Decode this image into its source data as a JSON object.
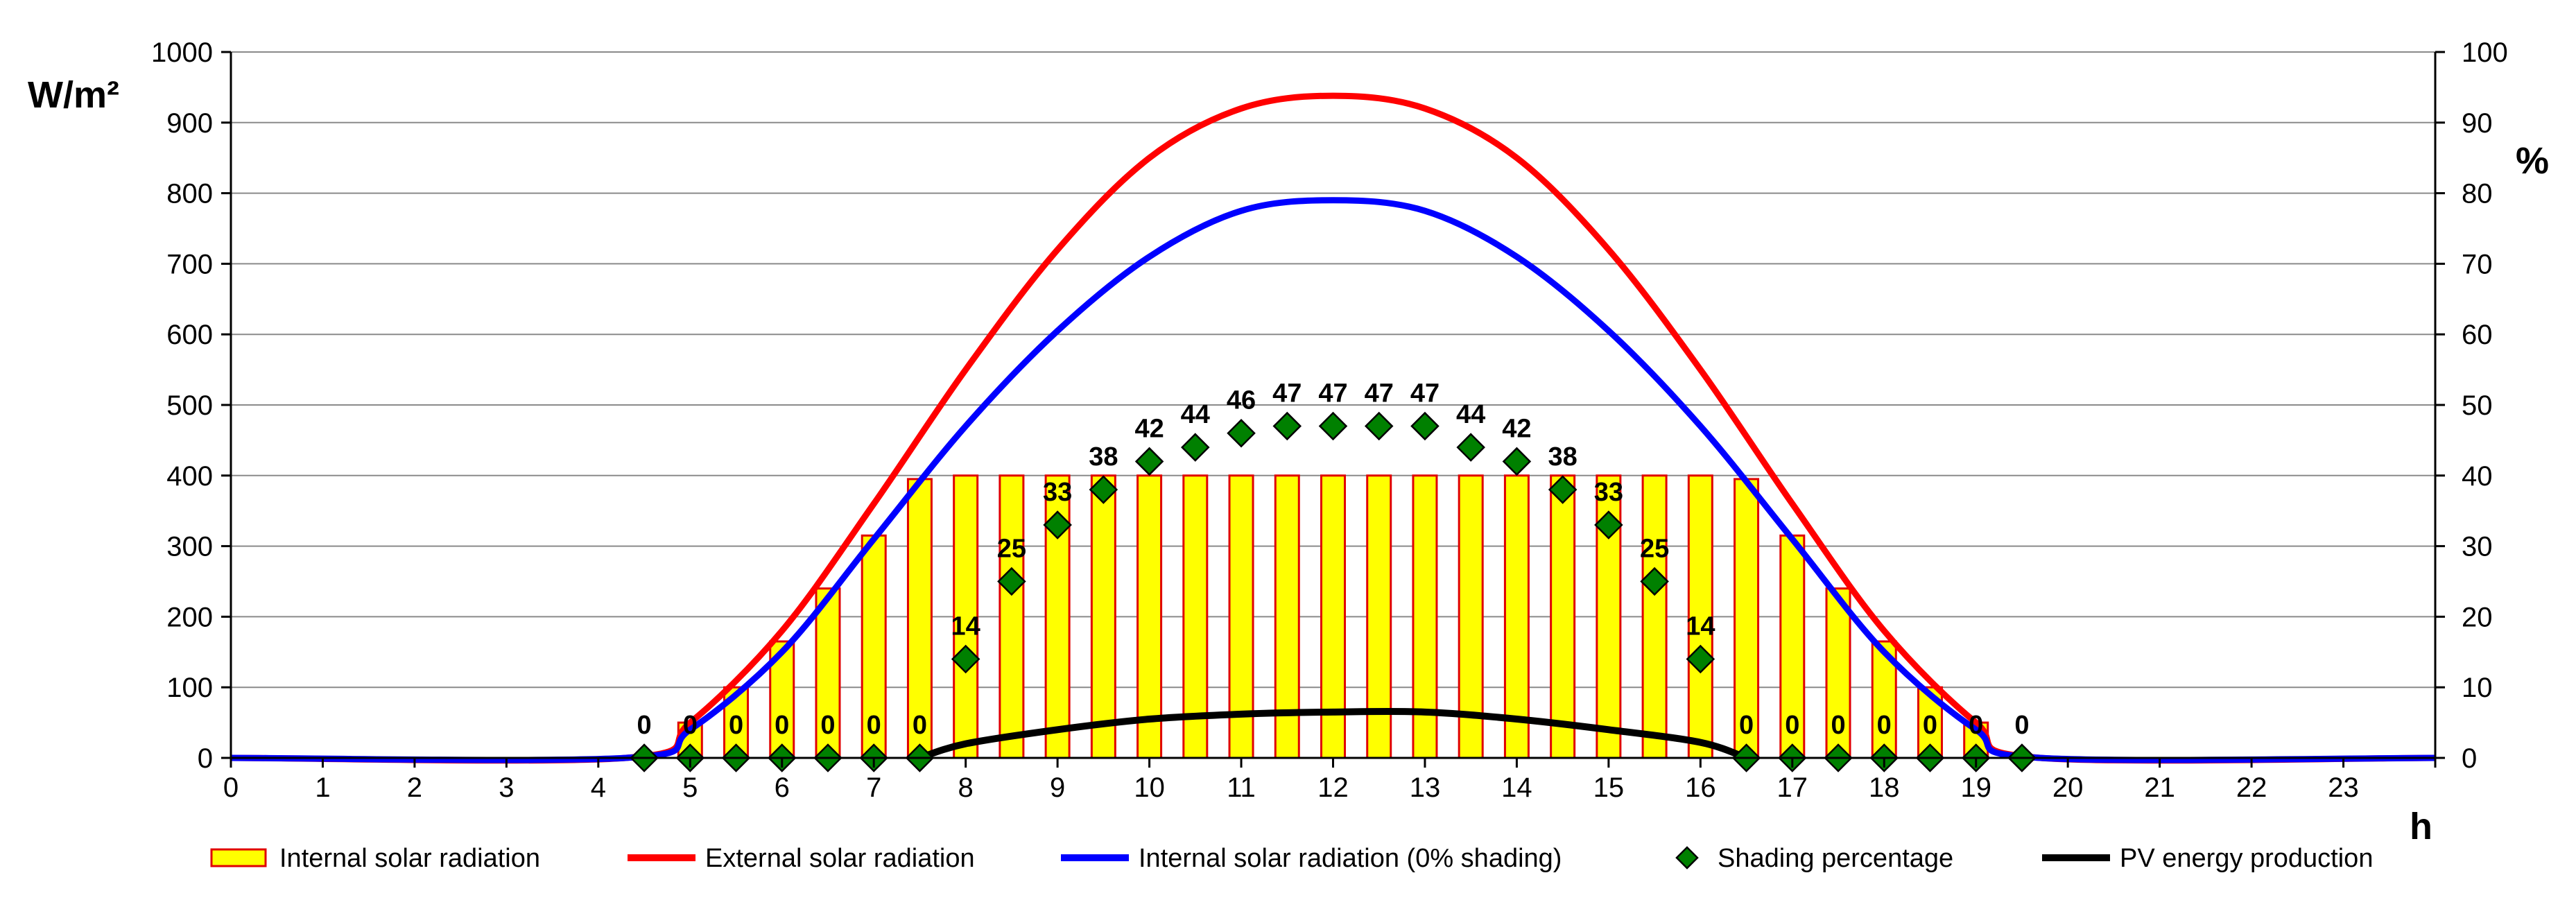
{
  "chart_data": {
    "type": "bar",
    "title": "",
    "y_left_label": "W/m²",
    "y_right_label": "%",
    "x_label": "h",
    "x_ticks": [
      0,
      1,
      2,
      3,
      4,
      5,
      6,
      7,
      8,
      9,
      10,
      11,
      12,
      13,
      14,
      15,
      16,
      17,
      18,
      19,
      20,
      21,
      22,
      23
    ],
    "x_range": [
      0,
      24
    ],
    "y_left_ticks": [
      0,
      100,
      200,
      300,
      400,
      500,
      600,
      700,
      800,
      900,
      1000
    ],
    "y_left_range": [
      0,
      1000
    ],
    "y_right_ticks": [
      0,
      10,
      20,
      30,
      40,
      50,
      60,
      70,
      80,
      90,
      100
    ],
    "y_right_range": [
      0,
      100
    ],
    "grid": "horizontal",
    "legend_position": "bottom",
    "series": [
      {
        "name": "Internal solar radiation",
        "type": "bar",
        "axis": "left",
        "color": "#ffff00",
        "edge_color": "#e00000",
        "x": [
          4.5,
          5,
          5.5,
          6,
          6.5,
          7,
          7.5,
          8,
          8.5,
          9,
          9.5,
          10,
          10.5,
          11,
          11.5,
          12,
          12.5,
          13,
          13.5,
          14,
          14.5,
          15,
          15.5,
          16,
          16.5,
          17,
          17.5,
          18,
          18.5,
          19,
          19.5
        ],
        "values": [
          0,
          50,
          100,
          165,
          240,
          315,
          395,
          400,
          400,
          400,
          400,
          400,
          400,
          400,
          400,
          400,
          400,
          400,
          400,
          400,
          400,
          400,
          400,
          400,
          395,
          315,
          240,
          165,
          100,
          50,
          0
        ]
      },
      {
        "name": "External solar radiation",
        "type": "line",
        "axis": "left",
        "color": "#ff0000",
        "x": [
          0,
          4.3,
          5,
          6,
          7,
          8,
          9,
          10,
          11,
          12,
          13,
          14,
          15,
          16,
          17,
          18,
          19,
          19.7,
          24
        ],
        "values": [
          0,
          0,
          50,
          180,
          360,
          550,
          720,
          850,
          920,
          938,
          920,
          850,
          720,
          550,
          360,
          180,
          50,
          0,
          0
        ]
      },
      {
        "name": "Internal solar radiation (0% shading)",
        "type": "line",
        "axis": "left",
        "color": "#0000ff",
        "x": [
          0,
          4.3,
          5,
          6,
          7,
          8,
          9,
          10,
          11,
          12,
          13,
          14,
          15,
          16,
          17,
          18,
          19,
          19.7,
          24
        ],
        "values": [
          0,
          0,
          40,
          150,
          310,
          470,
          605,
          710,
          775,
          790,
          775,
          710,
          605,
          470,
          310,
          150,
          40,
          0,
          0
        ]
      },
      {
        "name": "Shading percentage",
        "type": "scatter",
        "axis": "right",
        "color": "#008000",
        "x": [
          4.5,
          5,
          5.5,
          6,
          6.5,
          7,
          7.5,
          8,
          8.5,
          9,
          9.5,
          10,
          10.5,
          11,
          11.5,
          12,
          12.5,
          13,
          13.5,
          14,
          14.5,
          15,
          15.5,
          16,
          16.5,
          17,
          17.5,
          18,
          18.5,
          19,
          19.5
        ],
        "values": [
          0,
          0,
          0,
          0,
          0,
          0,
          0,
          14,
          25,
          33,
          38,
          42,
          44,
          46,
          47,
          47,
          47,
          47,
          44,
          42,
          38,
          33,
          25,
          14,
          0,
          0,
          0,
          0,
          0,
          0,
          0
        ]
      },
      {
        "name": "PV energy production",
        "type": "line",
        "axis": "left",
        "color": "#000000",
        "x": [
          7.5,
          8,
          9,
          10,
          11,
          12,
          13,
          14,
          15,
          16,
          16.5
        ],
        "values": [
          0,
          20,
          40,
          55,
          62,
          65,
          65,
          55,
          40,
          22,
          0
        ]
      }
    ],
    "data_labels": {
      "x": [
        4.5,
        5,
        5.5,
        6,
        6.5,
        7,
        7.5,
        8,
        8.5,
        9,
        9.5,
        10,
        10.5,
        11,
        11.5,
        12,
        12.5,
        13,
        13.5,
        14,
        14.5,
        15,
        15.5,
        16,
        16.5,
        17,
        17.5,
        18,
        18.5,
        19,
        19.5
      ],
      "text": [
        "0",
        "0",
        "0",
        "0",
        "0",
        "0",
        "0",
        "14",
        "25",
        "33",
        "38",
        "42",
        "44",
        "46",
        "47",
        "47",
        "47",
        "47",
        "44",
        "42",
        "38",
        "33",
        "25",
        "14",
        "0",
        "0",
        "0",
        "0",
        "0",
        "0",
        "0"
      ]
    }
  }
}
